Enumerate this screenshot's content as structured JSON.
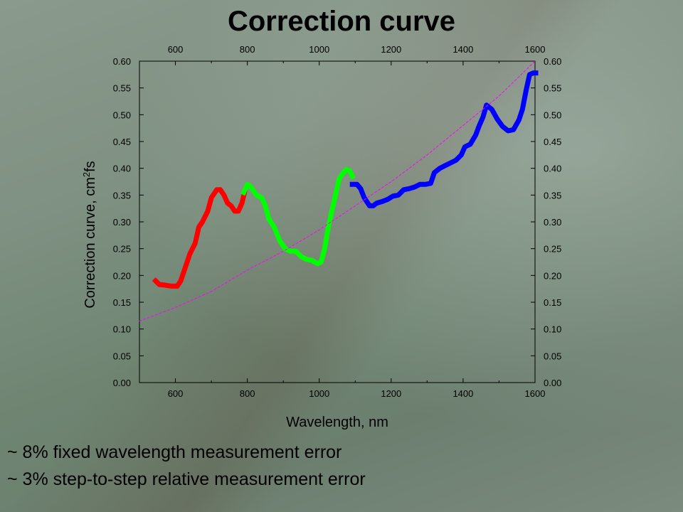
{
  "title": "Correction curve",
  "notes": [
    "~ 8% fixed wavelength measurement error",
    "~ 3% step-to-step relative measurement error"
  ],
  "chart_data": {
    "type": "line",
    "xlabel": "Wavelength, nm",
    "ylabel": "Correction curve, cm",
    "ylabel_superscript": "2",
    "ylabel_suffix": "fs",
    "xlim": [
      500,
      1600
    ],
    "ylim": [
      0.0,
      0.6
    ],
    "x_ticks": [
      "600",
      "800",
      "1000",
      "1200",
      "1400",
      "1600"
    ],
    "y_ticks": [
      "0.00",
      "0.05",
      "0.10",
      "0.15",
      "0.20",
      "0.25",
      "0.30",
      "0.35",
      "0.40",
      "0.45",
      "0.50",
      "0.55",
      "0.60"
    ],
    "x_tick_values": [
      600,
      800,
      1000,
      1200,
      1400,
      1600
    ],
    "y_tick_values": [
      0.0,
      0.05,
      0.1,
      0.15,
      0.2,
      0.25,
      0.3,
      0.35,
      0.4,
      0.45,
      0.5,
      0.55,
      0.6
    ],
    "top_axis": true,
    "right_axis": true,
    "series": [
      {
        "color": "#ff0000",
        "x": [
          545,
          555,
          570,
          590,
          605,
          615,
          625,
          640,
          655,
          665,
          675,
          690,
          700,
          715,
          725,
          735,
          745,
          755,
          765,
          775,
          785,
          792
        ],
        "y": [
          0.19,
          0.183,
          0.182,
          0.18,
          0.18,
          0.19,
          0.21,
          0.24,
          0.26,
          0.29,
          0.3,
          0.32,
          0.345,
          0.36,
          0.36,
          0.35,
          0.335,
          0.33,
          0.32,
          0.32,
          0.335,
          0.355
        ]
      },
      {
        "color": "#00ff00",
        "x": [
          790,
          800,
          810,
          825,
          840,
          850,
          860,
          875,
          890,
          905,
          920,
          935,
          950,
          965,
          980,
          995,
          1005,
          1015,
          1025,
          1035,
          1045,
          1055,
          1065,
          1075,
          1085,
          1092
        ],
        "y": [
          0.355,
          0.37,
          0.365,
          0.35,
          0.345,
          0.33,
          0.305,
          0.29,
          0.265,
          0.25,
          0.245,
          0.245,
          0.235,
          0.23,
          0.228,
          0.222,
          0.225,
          0.25,
          0.29,
          0.32,
          0.35,
          0.38,
          0.39,
          0.398,
          0.395,
          0.385
        ]
      },
      {
        "color": "#0000ff",
        "x": [
          1092,
          1105,
          1115,
          1125,
          1140,
          1150,
          1160,
          1175,
          1190,
          1205,
          1220,
          1235,
          1250,
          1265,
          1280,
          1295,
          1310,
          1320,
          1335,
          1350,
          1365,
          1380,
          1395,
          1405,
          1420,
          1435,
          1445,
          1455,
          1465,
          1480,
          1495,
          1510,
          1525,
          1540,
          1555,
          1565,
          1575,
          1585,
          1595,
          1602
        ],
        "y": [
          0.37,
          0.37,
          0.362,
          0.345,
          0.33,
          0.33,
          0.335,
          0.338,
          0.342,
          0.348,
          0.35,
          0.36,
          0.362,
          0.365,
          0.37,
          0.37,
          0.372,
          0.392,
          0.4,
          0.405,
          0.41,
          0.415,
          0.425,
          0.44,
          0.445,
          0.462,
          0.48,
          0.495,
          0.518,
          0.51,
          0.492,
          0.478,
          0.47,
          0.472,
          0.49,
          0.51,
          0.545,
          0.575,
          0.578,
          0.578
        ]
      },
      {
        "color": "#ff00ff",
        "dashed": true,
        "x": [
          500,
          600,
          700,
          800,
          900,
          1000,
          1100,
          1200,
          1300,
          1400,
          1500,
          1600
        ],
        "y": [
          0.115,
          0.14,
          0.17,
          0.21,
          0.245,
          0.285,
          0.33,
          0.375,
          0.425,
          0.48,
          0.535,
          0.6
        ]
      }
    ]
  }
}
